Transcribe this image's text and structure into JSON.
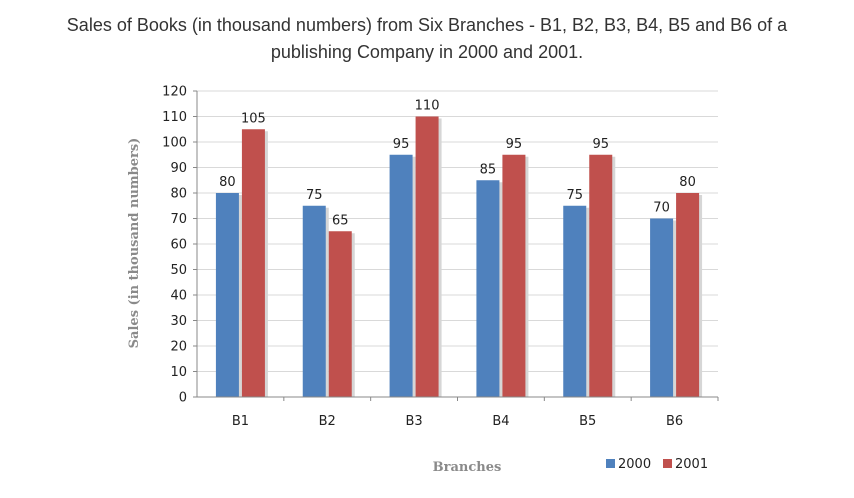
{
  "title": {
    "line1": "Sales of Books (in thousand numbers) from Six Branches - B1, B2, B3, B4, B5 and B6 of a",
    "line2": "publishing Company in 2000 and 2001."
  },
  "chart_data": {
    "type": "bar",
    "categories": [
      "B1",
      "B2",
      "B3",
      "B4",
      "B5",
      "B6"
    ],
    "series": [
      {
        "name": "2000",
        "values": [
          80,
          75,
          95,
          85,
          75,
          70
        ],
        "color": "#4f81bd"
      },
      {
        "name": "2001",
        "values": [
          105,
          65,
          110,
          95,
          95,
          80
        ],
        "color": "#c0504d"
      }
    ],
    "xlabel": "Branches",
    "ylabel": "Sales (in thousand numbers)",
    "ylim": [
      0,
      120
    ],
    "yticks": [
      0,
      10,
      20,
      30,
      40,
      50,
      60,
      70,
      80,
      90,
      100,
      110,
      120
    ],
    "grid": true,
    "legend_position": "bottom-right"
  }
}
